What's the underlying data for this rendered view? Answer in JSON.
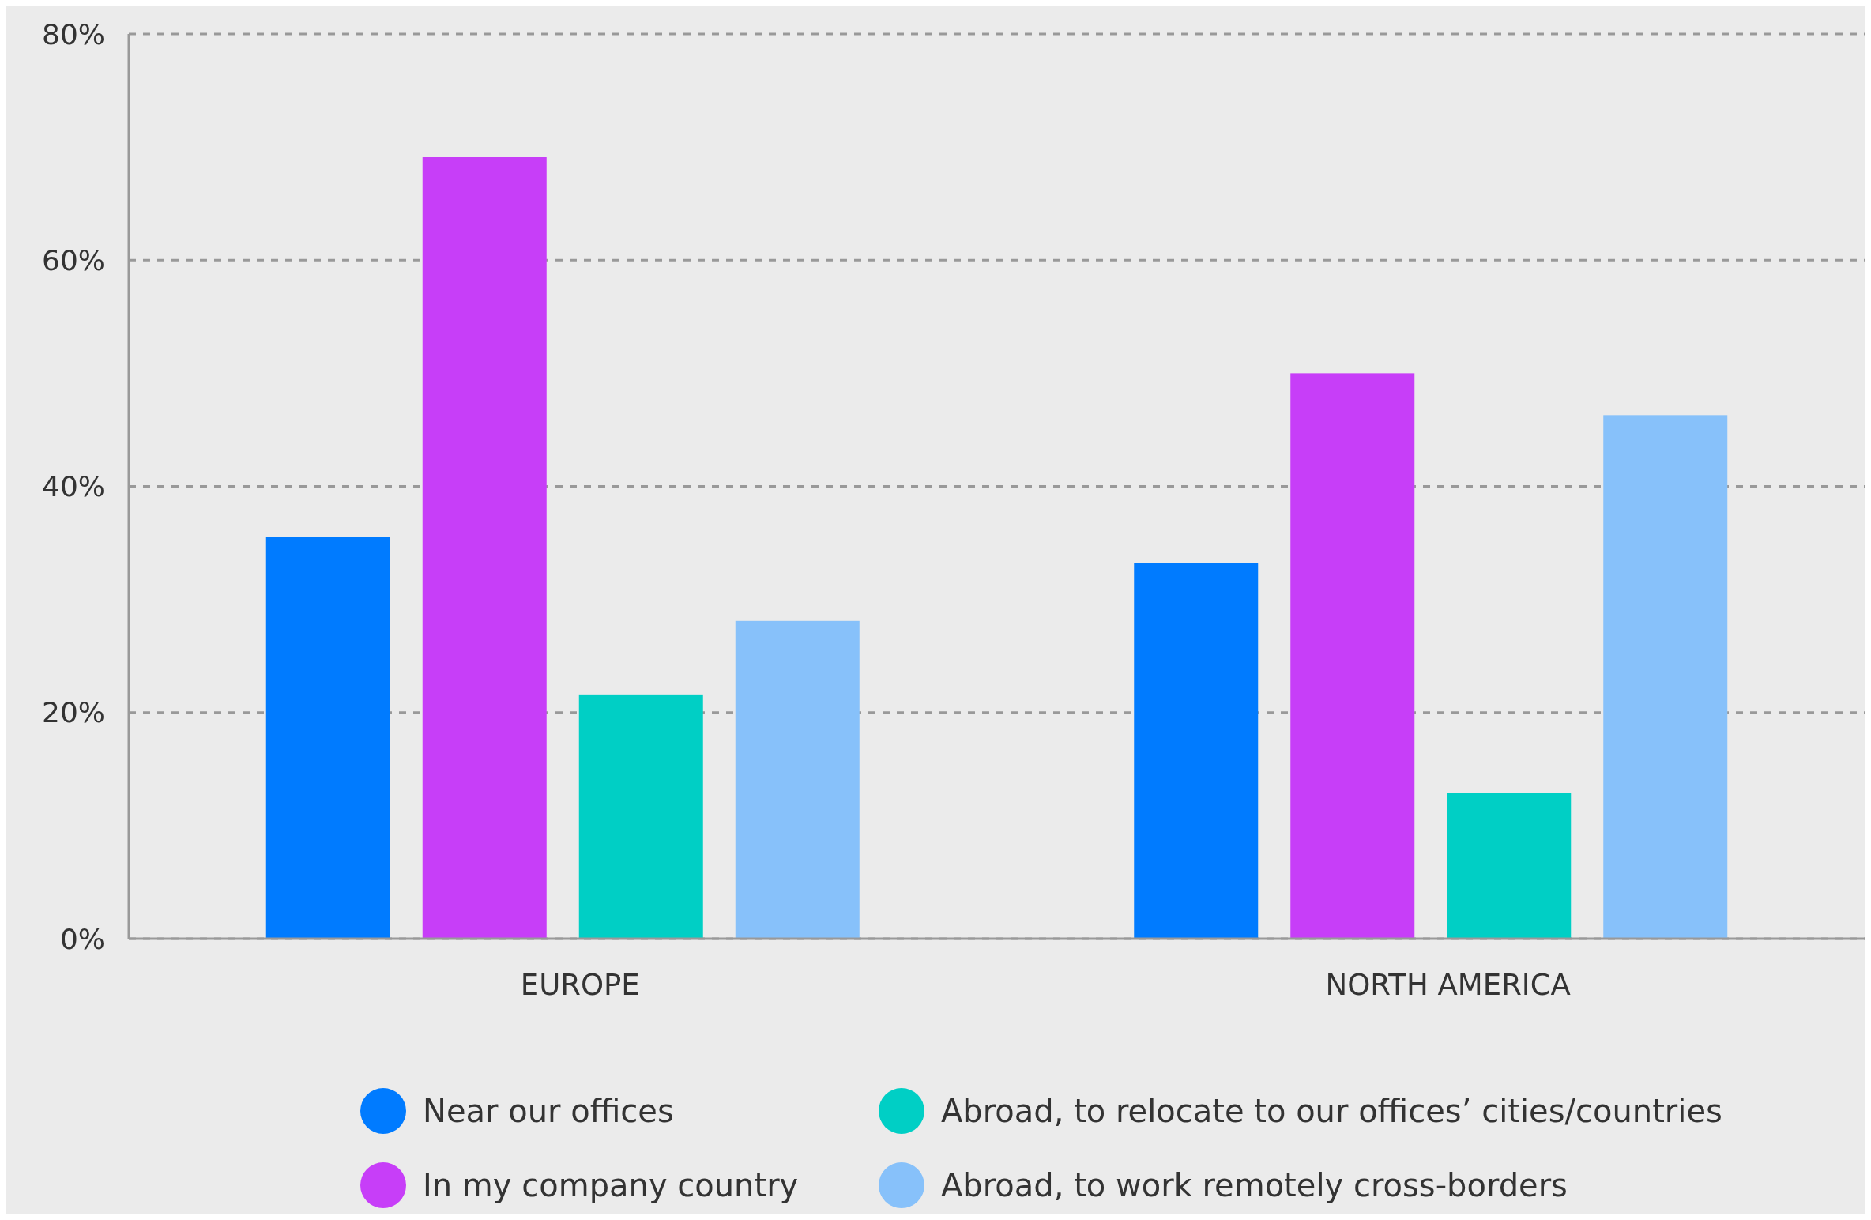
{
  "chart_data": {
    "type": "bar",
    "categories": [
      "EUROPE",
      "NORTH AMERICA"
    ],
    "series": [
      {
        "name": "Near our offices",
        "color": "#007bff",
        "values": [
          35.5,
          33.2
        ]
      },
      {
        "name": "In my company country",
        "color": "#c73ef8",
        "values": [
          69.1,
          50.0
        ]
      },
      {
        "name": "Abroad, to relocate to our offices’ cities/countries",
        "color": "#00cfc5",
        "values": [
          21.6,
          12.9
        ]
      },
      {
        "name": "Abroad, to work remotely cross-borders",
        "color": "#87c1fa",
        "values": [
          28.1,
          46.3
        ]
      }
    ],
    "ylim": [
      0,
      80
    ],
    "yticks": [
      {
        "value": 0,
        "label": "0%"
      },
      {
        "value": 20,
        "label": "20%"
      },
      {
        "value": 40,
        "label": "40%"
      },
      {
        "value": 60,
        "label": "60%"
      },
      {
        "value": 80,
        "label": "80%"
      }
    ],
    "grid": "y",
    "legend": "bottom"
  }
}
